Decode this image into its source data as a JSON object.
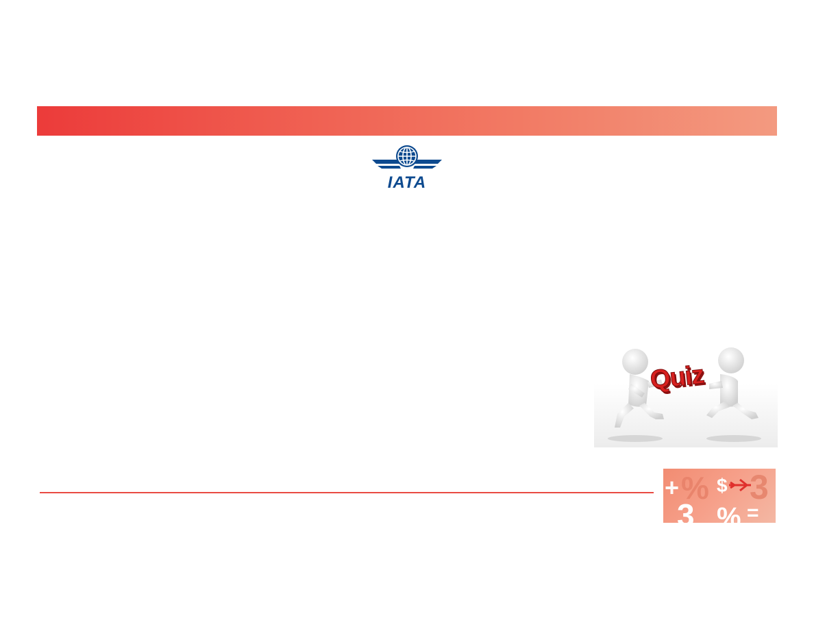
{
  "header_band": {
    "color_start": "#ec3b3a",
    "color_end": "#f39a80"
  },
  "logo": {
    "text": "IATA",
    "color": "#0d4a8f"
  },
  "quiz_illustration": {
    "word": "Quiz",
    "color": "#d8201f"
  },
  "divider": {
    "color": "#e94a43"
  },
  "math_badge": {
    "color": "#f28c72",
    "glyphs": [
      "+",
      "%",
      "$",
      "3",
      "3",
      "%",
      "="
    ]
  }
}
